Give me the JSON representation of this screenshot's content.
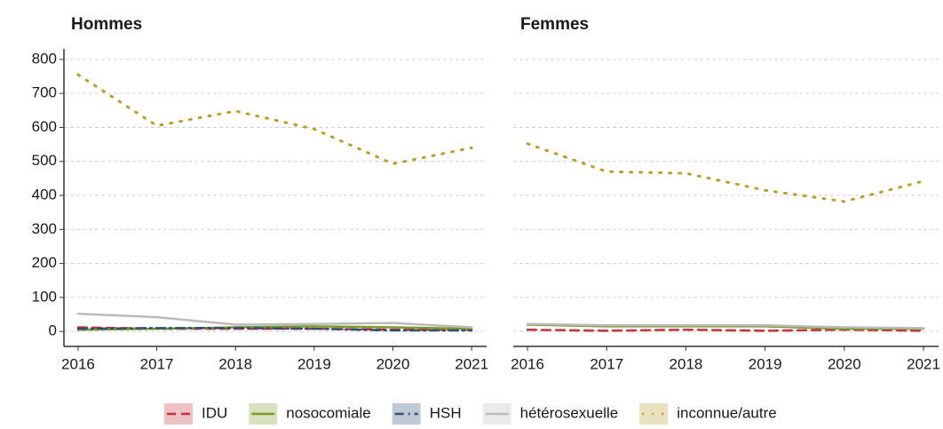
{
  "chart_data": [
    {
      "type": "line",
      "title": "Hommes",
      "x": [
        2016,
        2017,
        2018,
        2019,
        2020,
        2021
      ],
      "xlim": [
        2015.82,
        2021.19
      ],
      "xticks": [
        2016,
        2017,
        2018,
        2019,
        2020,
        2021
      ],
      "ylim": [
        -44,
        831
      ],
      "yticks": [
        0,
        100,
        200,
        300,
        400,
        500,
        600,
        700,
        800
      ],
      "grid": true,
      "series": [
        {
          "name": "IDU",
          "color": "#c8313b",
          "dash": "dashed",
          "values": [
            12,
            8,
            8,
            8,
            5,
            5
          ]
        },
        {
          "name": "nosocomiale",
          "color": "#7a9a2a",
          "dash": "solid",
          "values": [
            5,
            8,
            12,
            15,
            12,
            8
          ]
        },
        {
          "name": "HSH",
          "color": "#2f4f7a",
          "dash": "dashdot",
          "values": [
            8,
            10,
            10,
            8,
            3,
            3
          ]
        },
        {
          "name": "hétérosexuelle",
          "color": "#bbbbbb",
          "dash": "solid",
          "values": [
            52,
            42,
            20,
            22,
            25,
            12
          ]
        },
        {
          "name": "inconnue/autre",
          "color": "#b8a02a",
          "dash": "dotted",
          "values": [
            755,
            605,
            648,
            595,
            493,
            540
          ]
        }
      ]
    },
    {
      "type": "line",
      "title": "Femmes",
      "x": [
        2016,
        2017,
        2018,
        2019,
        2020,
        2021
      ],
      "xlim": [
        2015.82,
        2021.19
      ],
      "xticks": [
        2016,
        2017,
        2018,
        2019,
        2020,
        2021
      ],
      "ylim": [
        -44,
        831
      ],
      "yticks": [
        0,
        100,
        200,
        300,
        400,
        500,
        600,
        700,
        800
      ],
      "grid": true,
      "series": [
        {
          "color": "#c8313b",
          "dash": "dashed",
          "values": [
            5,
            2,
            5,
            2,
            5,
            2
          ]
        },
        {
          "color": "#7a9a2a",
          "dash": "solid",
          "values": [
            20,
            15,
            15,
            15,
            8,
            8
          ]
        },
        {
          "color": "#bbbbbb",
          "dash": "solid",
          "values": [
            22,
            18,
            18,
            18,
            12,
            10
          ]
        },
        {
          "color": "#b8a02a",
          "dash": "dotted",
          "values": [
            552,
            470,
            465,
            415,
            382,
            442
          ]
        }
      ]
    }
  ]
}
